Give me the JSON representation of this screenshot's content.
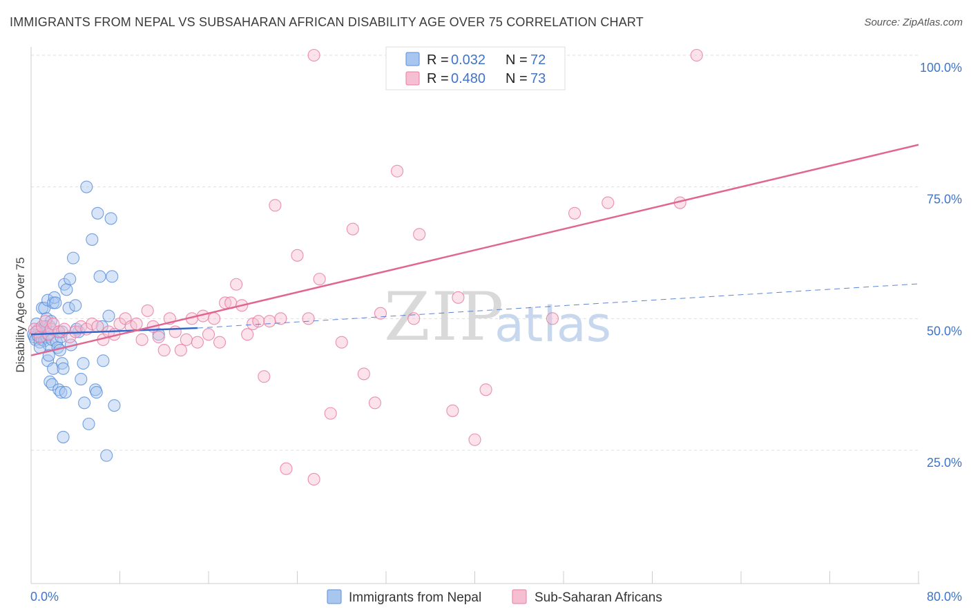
{
  "title": "IMMIGRANTS FROM NEPAL VS SUBSAHARAN AFRICAN DISABILITY AGE OVER 75 CORRELATION CHART",
  "source": "Source: ZipAtlas.com",
  "watermark": {
    "zip": "ZIP",
    "atlas": "atlas"
  },
  "colors": {
    "blue": "#5b8fd9",
    "blue_fill": "#a9c6ef",
    "blue_line": "#3266c9",
    "pink": "#e87da2",
    "pink_fill": "#f6bed3",
    "pink_line": "#e0668f",
    "tick_text": "#3f74c9",
    "grid": "#dddddd"
  },
  "stats": [
    {
      "r_label": "R =",
      "r_value": "0.032",
      "n_label": "N =",
      "n_value": "72"
    },
    {
      "r_label": "R =",
      "r_value": "0.480",
      "n_label": "N =",
      "n_value": "73"
    }
  ],
  "chart_data": {
    "type": "scatter",
    "title": "IMMIGRANTS FROM NEPAL VS SUBSAHARAN AFRICAN DISABILITY AGE OVER 75 CORRELATION CHART",
    "xlabel": "",
    "ylabel": "Disability Age Over 75",
    "xlim": [
      0,
      80
    ],
    "ylim": [
      0,
      105
    ],
    "x_tick_labels": [
      "0.0%",
      "80.0%"
    ],
    "y_ticks": [
      25,
      50,
      75,
      100
    ],
    "y_tick_labels": [
      "25.0%",
      "50.0%",
      "75.0%",
      "100.0%"
    ],
    "legend_position": "bottom-center",
    "series": [
      {
        "name": "Immigrants from Nepal",
        "color": "blue",
        "r": 0.032,
        "n": 72,
        "trend": {
          "x": [
            0,
            15
          ],
          "y": [
            47.0,
            48.2
          ],
          "style": "solid"
        },
        "trend_ext": {
          "x": [
            15,
            80
          ],
          "y": [
            48.2,
            56.6
          ],
          "style": "dashed"
        },
        "points": [
          [
            0.2,
            47.0
          ],
          [
            0.3,
            46.5
          ],
          [
            0.4,
            46.0
          ],
          [
            0.5,
            47.5
          ],
          [
            0.6,
            46.8
          ],
          [
            0.7,
            48.0
          ],
          [
            0.8,
            45.5
          ],
          [
            0.9,
            47.2
          ],
          [
            1.0,
            46.0
          ],
          [
            1.1,
            48.2
          ],
          [
            1.2,
            45.8
          ],
          [
            1.3,
            47.8
          ],
          [
            1.4,
            46.5
          ],
          [
            1.5,
            47.0
          ],
          [
            1.6,
            45.0
          ],
          [
            1.7,
            48.5
          ],
          [
            0.5,
            49.0
          ],
          [
            0.8,
            44.5
          ],
          [
            1.0,
            52.0
          ],
          [
            1.2,
            52.0
          ],
          [
            1.4,
            50.0
          ],
          [
            1.5,
            53.5
          ],
          [
            1.8,
            49.5
          ],
          [
            1.9,
            46.0
          ],
          [
            2.0,
            53.0
          ],
          [
            2.1,
            54.0
          ],
          [
            2.2,
            53.0
          ],
          [
            2.3,
            45.5
          ],
          [
            2.4,
            44.5
          ],
          [
            2.5,
            47.5
          ],
          [
            2.6,
            44.0
          ],
          [
            2.7,
            46.5
          ],
          [
            2.8,
            47.5
          ],
          [
            1.5,
            42.0
          ],
          [
            1.6,
            43.0
          ],
          [
            1.7,
            38.0
          ],
          [
            1.9,
            37.5
          ],
          [
            2.0,
            40.5
          ],
          [
            2.5,
            36.5
          ],
          [
            2.7,
            36.0
          ],
          [
            2.8,
            41.5
          ],
          [
            2.9,
            40.5
          ],
          [
            3.0,
            56.5
          ],
          [
            3.2,
            55.5
          ],
          [
            3.4,
            52.0
          ],
          [
            3.5,
            57.5
          ],
          [
            3.6,
            45.0
          ],
          [
            3.8,
            61.5
          ],
          [
            4.0,
            52.5
          ],
          [
            4.3,
            47.5
          ],
          [
            4.5,
            38.5
          ],
          [
            4.7,
            41.5
          ],
          [
            4.8,
            34.0
          ],
          [
            5.0,
            75.0
          ],
          [
            5.2,
            30.0
          ],
          [
            5.5,
            65.0
          ],
          [
            5.8,
            36.5
          ],
          [
            5.9,
            36.0
          ],
          [
            6.0,
            70.0
          ],
          [
            6.2,
            58.0
          ],
          [
            6.5,
            42.0
          ],
          [
            6.8,
            24.0
          ],
          [
            7.0,
            50.5
          ],
          [
            7.2,
            69.0
          ],
          [
            7.3,
            58.0
          ],
          [
            7.5,
            33.5
          ],
          [
            2.9,
            27.5
          ],
          [
            3.1,
            36.0
          ],
          [
            4.1,
            48.0
          ],
          [
            1.3,
            48.5
          ],
          [
            6.4,
            48.5
          ],
          [
            11.5,
            47.0
          ]
        ]
      },
      {
        "name": "Sub-Saharan Africans",
        "color": "pink",
        "r": 0.48,
        "n": 73,
        "trend": {
          "x": [
            0,
            80
          ],
          "y": [
            43.0,
            83.0
          ],
          "style": "solid"
        },
        "points": [
          [
            0.3,
            48.0
          ],
          [
            0.5,
            47.5
          ],
          [
            0.8,
            46.5
          ],
          [
            1.0,
            48.5
          ],
          [
            1.3,
            49.5
          ],
          [
            1.6,
            47.0
          ],
          [
            1.8,
            48.0
          ],
          [
            2.0,
            49.0
          ],
          [
            2.5,
            47.5
          ],
          [
            3.0,
            48.0
          ],
          [
            3.5,
            46.5
          ],
          [
            4.0,
            47.5
          ],
          [
            4.5,
            48.5
          ],
          [
            5.0,
            48.0
          ],
          [
            5.5,
            49.0
          ],
          [
            6.0,
            48.5
          ],
          [
            6.5,
            46.0
          ],
          [
            7.0,
            47.5
          ],
          [
            7.5,
            47.0
          ],
          [
            8.0,
            49.0
          ],
          [
            8.5,
            50.0
          ],
          [
            9.0,
            48.5
          ],
          [
            9.5,
            49.0
          ],
          [
            10.0,
            46.0
          ],
          [
            10.5,
            51.5
          ],
          [
            11.0,
            48.5
          ],
          [
            11.5,
            46.5
          ],
          [
            12.0,
            44.0
          ],
          [
            12.5,
            50.0
          ],
          [
            13.0,
            47.5
          ],
          [
            13.5,
            44.0
          ],
          [
            14.0,
            46.0
          ],
          [
            14.5,
            50.0
          ],
          [
            15.0,
            45.5
          ],
          [
            15.5,
            50.5
          ],
          [
            16.0,
            47.0
          ],
          [
            16.5,
            50.0
          ],
          [
            17.0,
            45.5
          ],
          [
            17.5,
            53.0
          ],
          [
            18.0,
            53.0
          ],
          [
            18.5,
            56.5
          ],
          [
            19.0,
            52.5
          ],
          [
            19.5,
            47.0
          ],
          [
            20.0,
            49.0
          ],
          [
            20.5,
            49.5
          ],
          [
            21.0,
            39.0
          ],
          [
            21.5,
            49.5
          ],
          [
            22.0,
            71.5
          ],
          [
            22.5,
            50.0
          ],
          [
            23.0,
            21.5
          ],
          [
            24.0,
            62.0
          ],
          [
            25.0,
            50.0
          ],
          [
            25.5,
            19.5
          ],
          [
            26.0,
            57.5
          ],
          [
            27.0,
            32.0
          ],
          [
            28.0,
            45.5
          ],
          [
            29.0,
            67.0
          ],
          [
            30.0,
            39.5
          ],
          [
            31.0,
            34.0
          ],
          [
            31.5,
            51.0
          ],
          [
            33.0,
            78.0
          ],
          [
            34.5,
            50.0
          ],
          [
            35.0,
            66.0
          ],
          [
            38.0,
            32.5
          ],
          [
            38.5,
            54.0
          ],
          [
            40.0,
            27.0
          ],
          [
            41.0,
            36.5
          ],
          [
            47.0,
            50.0
          ],
          [
            49.0,
            70.0
          ],
          [
            52.0,
            72.0
          ],
          [
            58.5,
            72.0
          ],
          [
            25.5,
            100.0
          ],
          [
            60.0,
            100.0
          ]
        ]
      }
    ]
  }
}
